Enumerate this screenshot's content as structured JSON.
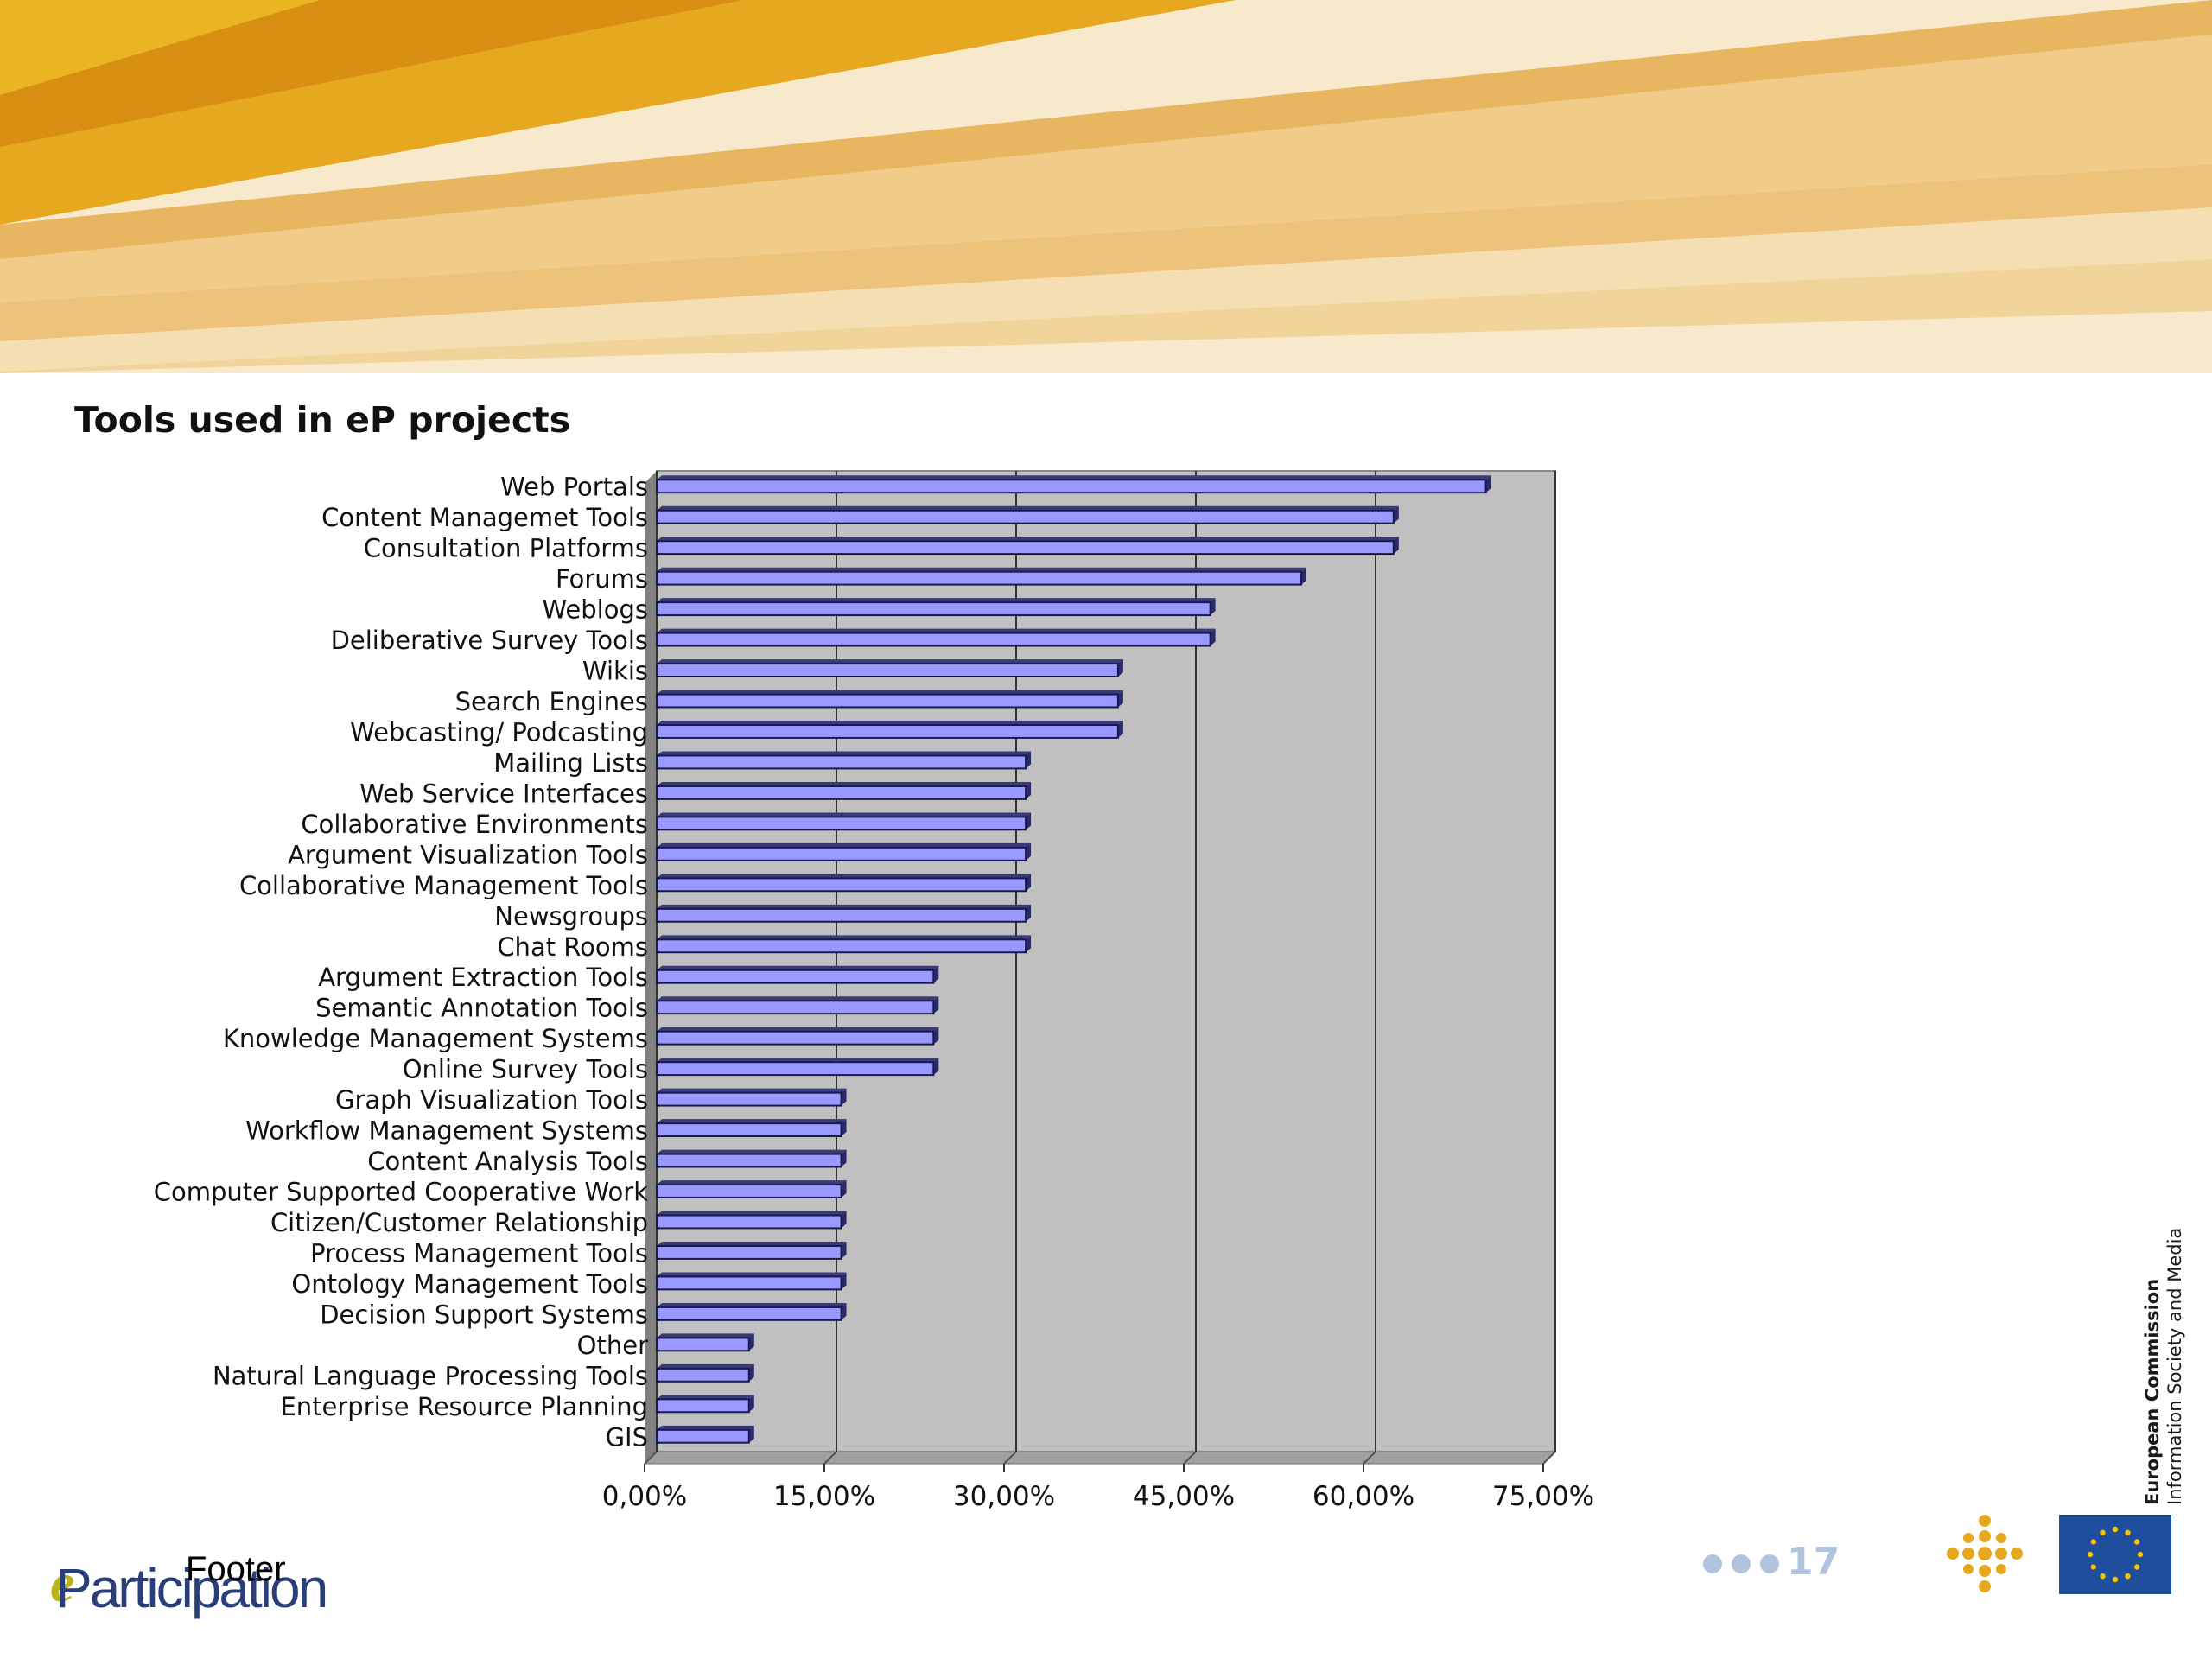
{
  "slide": {
    "footer_text": "Footer",
    "logo_text": "Participation",
    "logo_mark": "e",
    "page_number": "17",
    "org_line1": "European Commission",
    "org_line2": "Information Society and Media"
  },
  "colors": {
    "bar_fill": "#9999ff",
    "bar_edge": "#1a1a4a",
    "plot_bg": "#c0c0c0",
    "banner_gold": "#e6a81e",
    "banner_light": "#f5deb0",
    "page_number": "#b0c4e0",
    "eu_blue": "#1f4e9c",
    "eu_star": "#f5c400"
  },
  "chart_data": {
    "type": "bar",
    "orientation": "horizontal",
    "title": "Tools used in eP projects",
    "xlim": [
      0,
      75
    ],
    "x_ticks": [
      0,
      15,
      30,
      45,
      60,
      75
    ],
    "x_tick_labels": [
      "0,00%",
      "15,00%",
      "30,00%",
      "45,00%",
      "60,00%",
      "75,00%"
    ],
    "grid": "vertical",
    "categories": [
      "Web Portals",
      "Content Managemet Tools",
      "Consultation Platforms",
      "Forums",
      "Weblogs",
      "Deliberative Survey Tools",
      "Wikis",
      "Search Engines",
      "Webcasting/ Podcasting",
      "Mailing Lists",
      "Web Service Interfaces",
      "Collaborative Environments",
      "Argument Visualization Tools",
      "Collaborative Management Tools",
      "Newsgroups",
      "Chat Rooms",
      "Argument Extraction Tools",
      "Semantic Annotation Tools",
      "Knowledge Management Systems",
      "Online Survey Tools",
      "Graph Visualization Tools",
      "Workflow Management Systems",
      "Content Analysis Tools",
      "Computer Supported Cooperative Work",
      "Citizen/Customer Relationship",
      "Process Management Tools",
      "Ontology Management Tools",
      "Decision Support Systems",
      "Other",
      "Natural Language Processing Tools",
      "Enterprise Resource Planning",
      "GIS"
    ],
    "values": [
      69.2,
      61.5,
      61.5,
      53.8,
      46.2,
      46.2,
      38.5,
      38.5,
      38.5,
      30.8,
      30.8,
      30.8,
      30.8,
      30.8,
      30.8,
      30.8,
      23.1,
      23.1,
      23.1,
      23.1,
      15.4,
      15.4,
      15.4,
      15.4,
      15.4,
      15.4,
      15.4,
      15.4,
      7.7,
      7.7,
      7.7,
      7.7
    ]
  }
}
